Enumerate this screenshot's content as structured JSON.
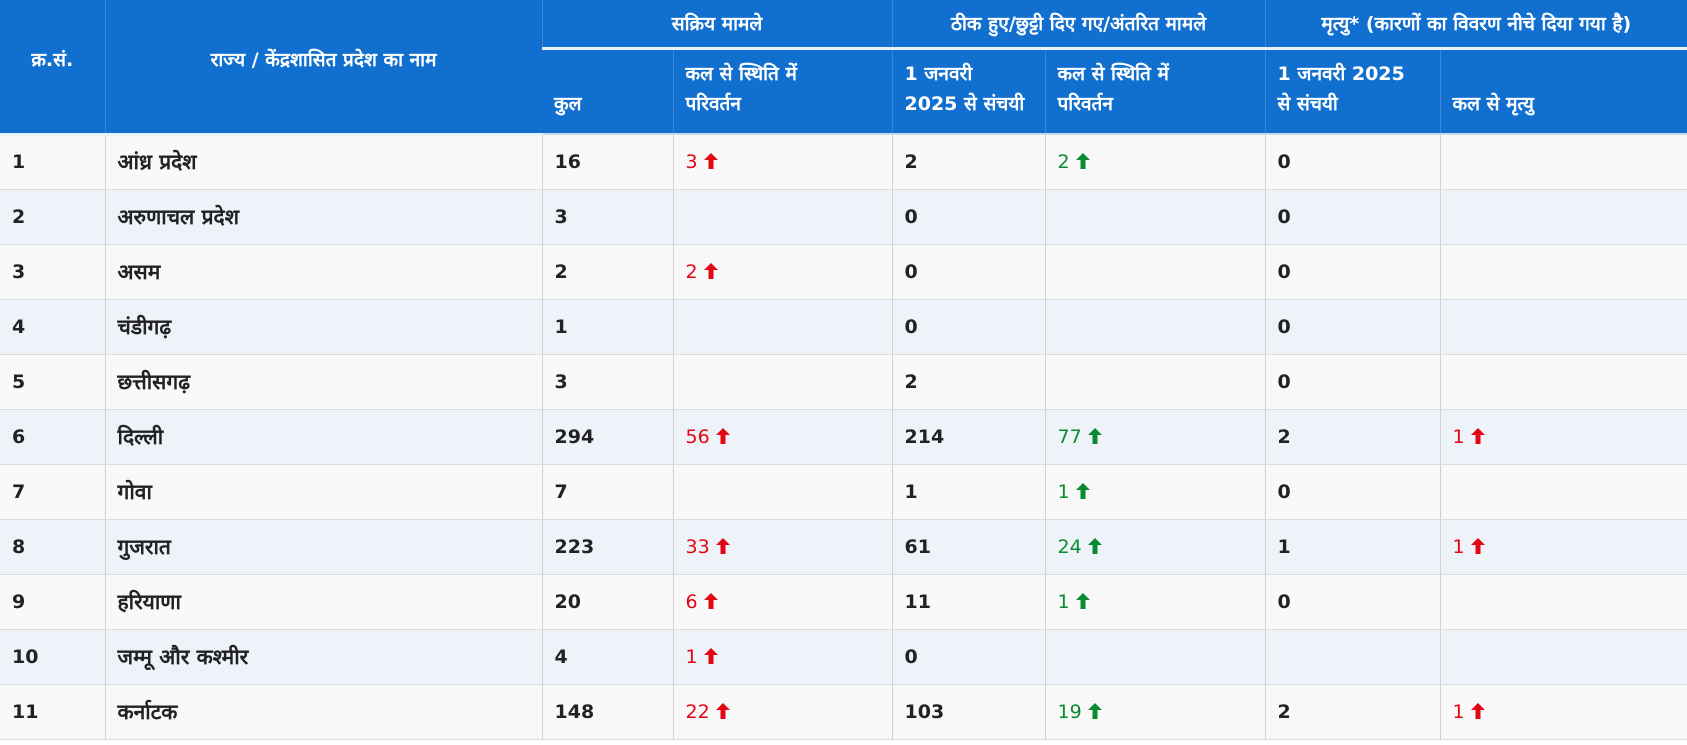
{
  "colors": {
    "header_bg": "#1170cf",
    "increase_red": "#e30613",
    "increase_green": "#0a8a2e"
  },
  "header": {
    "sno": "क्र.सं.",
    "state": "राज्य / केंद्रशासित प्रदेश का नाम",
    "active_group": "सक्रिय मामले",
    "discharged_group": "ठीक हुए/छुट्टी दिए गए/अंतरित मामले",
    "deaths_group": "मृत्यु* (कारणों का विवरण नीचे दिया गया है)",
    "active_total": "कुल",
    "active_change_l1": "कल से स्थिति में",
    "active_change_l2": "परिवर्तन",
    "discharged_cum_l1": "1 जनवरी",
    "discharged_cum_l2": "2025 से संचयी",
    "discharged_change_l1": "कल से स्थिति में",
    "discharged_change_l2": "परिवर्तन",
    "deaths_cum_l1": "1 जनवरी 2025",
    "deaths_cum_l2": "से संचयी",
    "deaths_change": "कल से मृत्यु"
  },
  "arrow_icon": "up-arrow-icon",
  "rows": [
    {
      "sno": "1",
      "state": "आंध्र प्रदेश",
      "active": "16",
      "active_change": "3",
      "discharged": "2",
      "discharged_change": "2",
      "deaths": "0",
      "deaths_change": ""
    },
    {
      "sno": "2",
      "state": "अरुणाचल प्रदेश",
      "active": "3",
      "active_change": "",
      "discharged": "0",
      "discharged_change": "",
      "deaths": "0",
      "deaths_change": ""
    },
    {
      "sno": "3",
      "state": "असम",
      "active": "2",
      "active_change": "2",
      "discharged": "0",
      "discharged_change": "",
      "deaths": "0",
      "deaths_change": ""
    },
    {
      "sno": "4",
      "state": "चंडीगढ़",
      "active": "1",
      "active_change": "",
      "discharged": "0",
      "discharged_change": "",
      "deaths": "0",
      "deaths_change": ""
    },
    {
      "sno": "5",
      "state": "छत्तीसगढ़",
      "active": "3",
      "active_change": "",
      "discharged": "2",
      "discharged_change": "",
      "deaths": "0",
      "deaths_change": ""
    },
    {
      "sno": "6",
      "state": "दिल्ली",
      "active": "294",
      "active_change": "56",
      "discharged": "214",
      "discharged_change": "77",
      "deaths": "2",
      "deaths_change": "1"
    },
    {
      "sno": "7",
      "state": "गोवा",
      "active": "7",
      "active_change": "",
      "discharged": "1",
      "discharged_change": "1",
      "deaths": "0",
      "deaths_change": ""
    },
    {
      "sno": "8",
      "state": "गुजरात",
      "active": "223",
      "active_change": "33",
      "discharged": "61",
      "discharged_change": "24",
      "deaths": "1",
      "deaths_change": "1"
    },
    {
      "sno": "9",
      "state": "हरियाणा",
      "active": "20",
      "active_change": "6",
      "discharged": "11",
      "discharged_change": "1",
      "deaths": "0",
      "deaths_change": ""
    },
    {
      "sno": "10",
      "state": "जम्मू और कश्मीर",
      "active": "4",
      "active_change": "1",
      "discharged": "0",
      "discharged_change": "",
      "deaths": "",
      "deaths_change": ""
    },
    {
      "sno": "11",
      "state": "कर्नाटक",
      "active": "148",
      "active_change": "22",
      "discharged": "103",
      "discharged_change": "19",
      "deaths": "2",
      "deaths_change": "1"
    }
  ]
}
